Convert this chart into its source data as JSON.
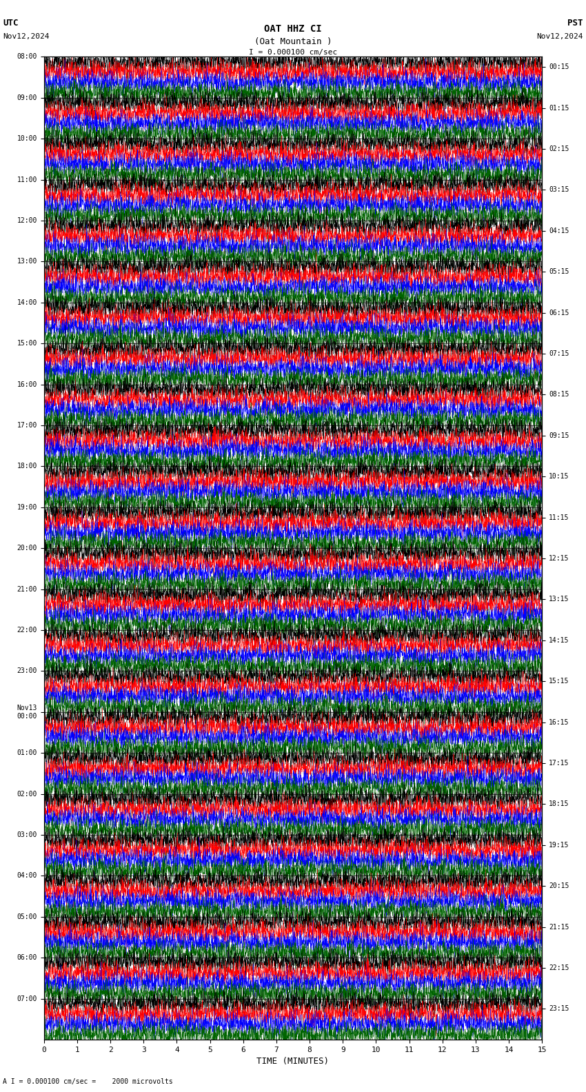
{
  "title_line1": "OAT HHZ CI",
  "title_line2": "(Oat Mountain )",
  "scale_label": "I = 0.000100 cm/sec",
  "footer_label": "A I = 0.000100 cm/sec =    2000 microvolts",
  "utc_label": "UTC",
  "utc_date": "Nov12,2024",
  "pst_label": "PST",
  "pst_date": "Nov12,2024",
  "xlabel": "TIME (MINUTES)",
  "left_yticks_labels": [
    "08:00",
    "09:00",
    "10:00",
    "11:00",
    "12:00",
    "13:00",
    "14:00",
    "15:00",
    "16:00",
    "17:00",
    "18:00",
    "19:00",
    "20:00",
    "21:00",
    "22:00",
    "23:00",
    "Nov13\n00:00",
    "01:00",
    "02:00",
    "03:00",
    "04:00",
    "05:00",
    "06:00",
    "07:00"
  ],
  "right_yticks_labels": [
    "00:15",
    "01:15",
    "02:15",
    "03:15",
    "04:15",
    "05:15",
    "06:15",
    "07:15",
    "08:15",
    "09:15",
    "10:15",
    "11:15",
    "12:15",
    "13:15",
    "14:15",
    "15:15",
    "16:15",
    "17:15",
    "18:15",
    "19:15",
    "20:15",
    "21:15",
    "22:15",
    "23:15"
  ],
  "n_hours": 24,
  "n_rows_per_hour": 4,
  "n_cols": 4000,
  "time_min": 0,
  "time_max": 15,
  "xticks": [
    0,
    1,
    2,
    3,
    4,
    5,
    6,
    7,
    8,
    9,
    10,
    11,
    12,
    13,
    14,
    15
  ],
  "row_colors": [
    "black",
    "red",
    "blue",
    "darkgreen"
  ],
  "background": "white",
  "seed": 42,
  "amplitude_scale": 0.55,
  "linewidth": 0.25
}
